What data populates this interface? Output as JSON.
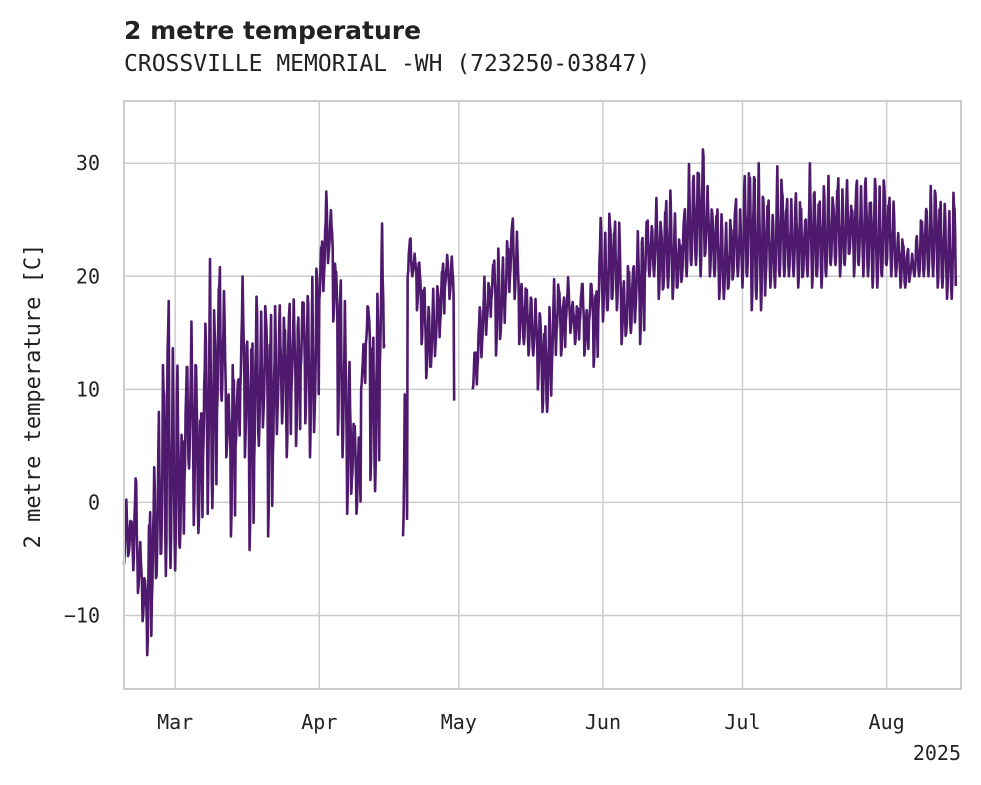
{
  "chart_data": {
    "type": "line",
    "title": "2 metre temperature",
    "subtitle": "CROSSVILLE MEMORIAL -WH (723250-03847)",
    "xlabel": "",
    "ylabel": "2 metre temperature [C]",
    "xlim": [
      "2025-02-18",
      "2025-08-17"
    ],
    "ylim": [
      -16.5,
      35.5
    ],
    "grid": true,
    "x_ticks": [
      {
        "date": "2025-03-01",
        "label": "Mar"
      },
      {
        "date": "2025-04-01",
        "label": "Apr"
      },
      {
        "date": "2025-05-01",
        "label": "May"
      },
      {
        "date": "2025-06-01",
        "label": "Jun"
      },
      {
        "date": "2025-07-01",
        "label": "Jul"
      },
      {
        "date": "2025-08-01",
        "label": "Aug"
      }
    ],
    "x_offset_label": "2025",
    "y_ticks": [
      {
        "value": -10,
        "label": "−10"
      },
      {
        "value": 0,
        "label": "0"
      },
      {
        "value": 10,
        "label": "10"
      },
      {
        "value": 20,
        "label": "20"
      },
      {
        "value": 30,
        "label": "30"
      }
    ],
    "line_color": "#4f1a6e",
    "series": [
      {
        "x": [
          "2025-02-18",
          "2025-02-19",
          "2025-02-20",
          "2025-02-21",
          "2025-02-22",
          "2025-02-23",
          "2025-02-24",
          "2025-02-25",
          "2025-02-26",
          "2025-02-27",
          "2025-02-28",
          "2025-03-01",
          "2025-03-02",
          "2025-03-03",
          "2025-03-04",
          "2025-03-05",
          "2025-03-06",
          "2025-03-07",
          "2025-03-08",
          "2025-03-09",
          "2025-03-10",
          "2025-03-11",
          "2025-03-12",
          "2025-03-13",
          "2025-03-14",
          "2025-03-15",
          "2025-03-16",
          "2025-03-17",
          "2025-03-18",
          "2025-03-19",
          "2025-03-20",
          "2025-03-21",
          "2025-03-22",
          "2025-03-23",
          "2025-03-24",
          "2025-03-25",
          "2025-03-26",
          "2025-03-27",
          "2025-03-28",
          "2025-03-29",
          "2025-03-30",
          "2025-03-31",
          "2025-04-01",
          "2025-04-02",
          "2025-04-03",
          "2025-04-04",
          "2025-04-05",
          "2025-04-06",
          "2025-04-07",
          "2025-04-08",
          "2025-04-09",
          "2025-04-10",
          "2025-04-11",
          "2025-04-12",
          "2025-04-13",
          "2025-04-14",
          "2025-04-15",
          "2025-04-16",
          "2025-04-17",
          "2025-04-18",
          "2025-04-19",
          "2025-04-20",
          "2025-04-21",
          "2025-04-22",
          "2025-04-23",
          "2025-04-24",
          "2025-04-25",
          "2025-04-26",
          "2025-04-27",
          "2025-04-28",
          "2025-04-29",
          "2025-04-30",
          "2025-05-01",
          "2025-05-02",
          "2025-05-03",
          "2025-05-04",
          "2025-05-05",
          "2025-05-06",
          "2025-05-07",
          "2025-05-08",
          "2025-05-09",
          "2025-05-10",
          "2025-05-11",
          "2025-05-12",
          "2025-05-13",
          "2025-05-14",
          "2025-05-15",
          "2025-05-16",
          "2025-05-17",
          "2025-05-18",
          "2025-05-19",
          "2025-05-20",
          "2025-05-21",
          "2025-05-22",
          "2025-05-23",
          "2025-05-24",
          "2025-05-25",
          "2025-05-26",
          "2025-05-27",
          "2025-05-28",
          "2025-05-29",
          "2025-05-30",
          "2025-05-31",
          "2025-06-01",
          "2025-06-02",
          "2025-06-03",
          "2025-06-04",
          "2025-06-05",
          "2025-06-06",
          "2025-06-07",
          "2025-06-08",
          "2025-06-09",
          "2025-06-10",
          "2025-06-11",
          "2025-06-12",
          "2025-06-13",
          "2025-06-14",
          "2025-06-15",
          "2025-06-16",
          "2025-06-17",
          "2025-06-18",
          "2025-06-19",
          "2025-06-20",
          "2025-06-21",
          "2025-06-22",
          "2025-06-23",
          "2025-06-24",
          "2025-06-25",
          "2025-06-26",
          "2025-06-27",
          "2025-06-28",
          "2025-06-29",
          "2025-06-30",
          "2025-07-01",
          "2025-07-02",
          "2025-07-03",
          "2025-07-04",
          "2025-07-05",
          "2025-07-06",
          "2025-07-07",
          "2025-07-08",
          "2025-07-09",
          "2025-07-10",
          "2025-07-11",
          "2025-07-12",
          "2025-07-13",
          "2025-07-14",
          "2025-07-15",
          "2025-07-16",
          "2025-07-17",
          "2025-07-18",
          "2025-07-19",
          "2025-07-20",
          "2025-07-21",
          "2025-07-22",
          "2025-07-23",
          "2025-07-24",
          "2025-07-25",
          "2025-07-26",
          "2025-07-27",
          "2025-07-28",
          "2025-07-29",
          "2025-07-30",
          "2025-07-31",
          "2025-08-01",
          "2025-08-02",
          "2025-08-03",
          "2025-08-04",
          "2025-08-05",
          "2025-08-06",
          "2025-08-07",
          "2025-08-08",
          "2025-08-09",
          "2025-08-10",
          "2025-08-11",
          "2025-08-12",
          "2025-08-13",
          "2025-08-14",
          "2025-08-15",
          "2025-08-16"
        ],
        "y_min": [
          -5.5,
          -4.5,
          -6,
          -8,
          -10.5,
          -13.5,
          -8.5,
          -6.5,
          -4.5,
          -6.5,
          -5.8,
          -6,
          -4,
          2,
          3,
          -2,
          -2.7,
          4,
          -1,
          -0.5,
          8,
          9,
          4,
          -3,
          5,
          10,
          4,
          -4.2,
          4,
          5,
          8,
          -3,
          4,
          8,
          7,
          4,
          10,
          5,
          12,
          7,
          4,
          8,
          18,
          20,
          22,
          16,
          6,
          4,
          -1,
          2,
          -1,
          10,
          14,
          2,
          1,
          12,
          14,
          12,
          16,
          4,
          -3,
          20,
          20,
          17,
          14,
          11,
          12,
          14,
          16,
          19,
          18,
          9,
          7,
          7.5,
          9,
          10,
          12,
          14,
          16,
          18,
          13,
          15,
          18,
          20,
          18,
          14,
          14,
          13,
          13,
          10,
          8,
          8,
          12,
          15,
          13,
          16,
          15,
          14,
          16,
          13,
          16,
          12,
          17,
          16,
          17,
          18,
          17,
          14,
          15,
          15,
          17,
          14,
          20,
          20,
          20,
          18,
          19,
          19,
          18,
          19,
          20,
          20,
          21,
          21,
          20,
          22,
          20,
          20,
          18,
          18,
          19,
          20,
          20,
          19,
          20,
          17,
          18,
          17,
          20,
          19,
          19,
          20,
          20,
          20,
          20,
          19,
          20,
          20,
          19,
          20,
          19,
          20,
          21,
          21,
          20,
          21,
          22,
          20,
          21,
          20,
          20,
          19,
          19,
          20,
          21,
          20,
          20,
          19,
          19,
          20,
          20,
          20,
          20,
          20,
          20,
          19,
          19,
          18,
          18
        ],
        "y_max": [
          1,
          -1,
          3.5,
          -3.5,
          -6,
          1.5,
          4,
          8.5,
          15,
          22,
          14,
          14,
          8,
          14,
          16,
          15,
          10,
          17,
          22,
          20,
          23,
          19,
          10,
          15,
          12,
          20,
          16,
          18,
          20,
          17,
          19,
          20,
          18,
          18,
          18,
          20,
          18,
          18,
          19,
          20,
          20,
          23,
          24,
          28,
          26,
          22,
          22,
          18,
          14,
          8,
          7,
          14,
          18,
          17,
          20,
          25,
          26,
          22,
          24,
          17,
          12,
          24,
          22,
          22,
          20,
          18,
          19,
          20,
          22,
          22,
          22,
          24,
          24,
          18,
          16,
          14,
          18,
          20,
          20,
          22,
          23,
          22,
          24,
          26,
          24,
          20,
          20,
          19,
          18,
          18,
          17,
          18,
          20,
          20,
          19,
          20,
          18,
          18,
          20,
          17,
          20,
          20,
          26,
          24,
          27,
          26,
          25,
          20,
          22,
          22,
          24,
          25,
          26,
          25,
          27,
          26,
          28,
          28,
          26,
          24,
          27,
          30,
          30,
          31,
          33,
          28,
          27,
          27,
          26,
          25,
          26,
          28,
          26,
          30,
          31,
          31,
          30,
          29,
          28,
          26,
          30,
          30,
          28,
          27,
          28,
          28,
          26,
          30,
          29,
          28,
          29,
          29,
          28,
          30,
          28,
          29,
          27,
          30,
          28,
          30,
          28,
          30,
          28,
          30,
          28,
          27,
          24,
          24,
          23,
          22,
          24,
          26,
          27,
          28,
          29,
          28,
          27,
          26,
          29
        ],
        "gaps": [
          {
            "start": "2025-04-15",
            "end": "2025-04-19"
          },
          {
            "start": "2025-04-30",
            "end": "2025-05-04"
          }
        ]
      }
    ]
  }
}
